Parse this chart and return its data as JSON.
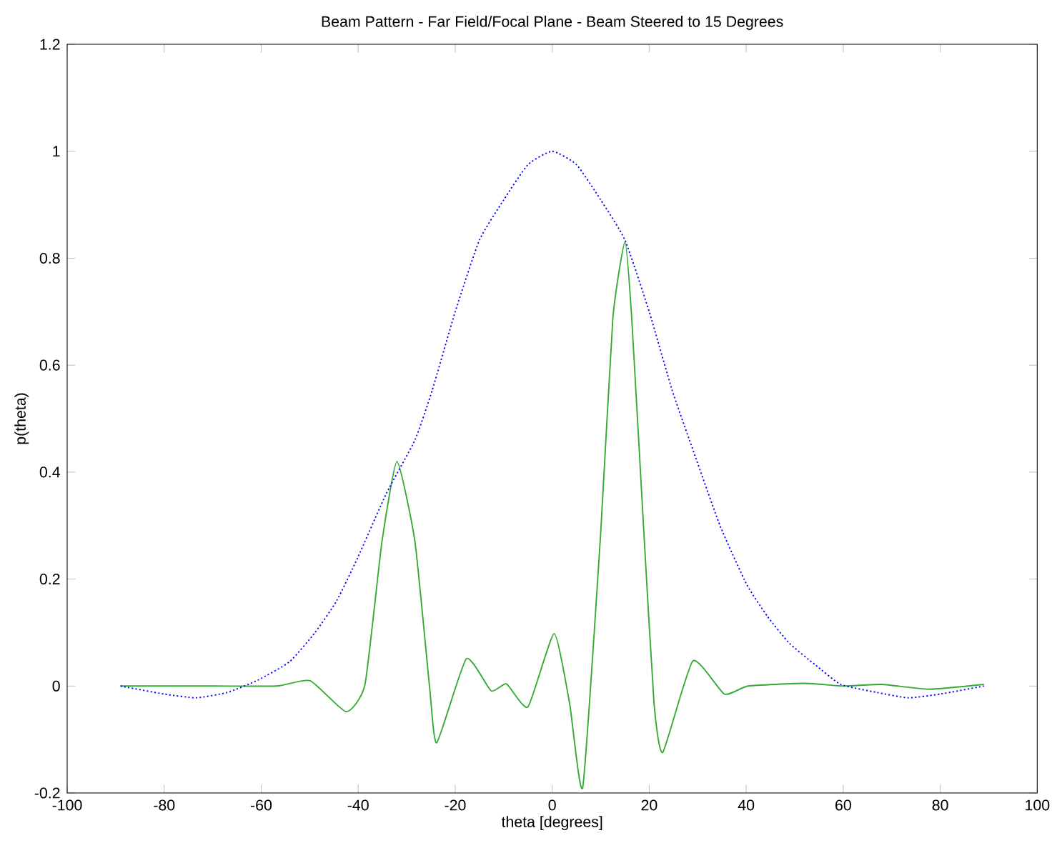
{
  "chart_data": {
    "type": "line",
    "title": "Beam Pattern - Far Field/Focal Plane - Beam Steered to 15 Degrees",
    "xlabel": "theta [degrees]",
    "ylabel": "p(theta)",
    "xlim": [
      -100,
      100
    ],
    "ylim": [
      -0.2,
      1.2
    ],
    "xticks": [
      -100,
      -80,
      -60,
      -40,
      -20,
      0,
      20,
      40,
      60,
      80,
      100
    ],
    "yticks": [
      -0.2,
      0,
      0.2,
      0.4,
      0.6,
      0.8,
      1,
      1.2
    ],
    "grid": false,
    "marker": "none",
    "series": [
      {
        "color": "#33aa33",
        "line_style": "solid",
        "x": [
          -89,
          -70,
          -56.8,
          -49.9,
          -42.5,
          -38.6,
          -35.1,
          -32,
          -28.3,
          -25.3,
          -23.8,
          -17.7,
          -12.6,
          -9.4,
          -5,
          0.4,
          3.6,
          6.3,
          10,
          12.5,
          15,
          16.4,
          18.9,
          21,
          22.8,
          29,
          35.5,
          40.4,
          52.1,
          60,
          68,
          77.8,
          89
        ],
        "values": [
          0,
          0,
          0,
          0.01,
          -0.048,
          0.003,
          0.27,
          0.42,
          0.27,
          0,
          -0.106,
          0.051,
          -0.009,
          0.004,
          -0.039,
          0.098,
          -0.033,
          -0.189,
          0.287,
          0.687,
          0.83,
          0.687,
          0.287,
          -0.033,
          -0.124,
          0.047,
          -0.015,
          0,
          0.005,
          0,
          0.003,
          -0.006,
          0.003
        ]
      },
      {
        "color": "#0000ff",
        "line_style": "dotted",
        "x": [
          -89,
          -80,
          -73.4,
          -67,
          -60.7,
          -54.2,
          -48.9,
          -44.4,
          -40.1,
          -34.2,
          -28.3,
          -24.7,
          -20,
          -15,
          -10,
          -5,
          0,
          5,
          10,
          15,
          20,
          24.7,
          28.3,
          34.6,
          40.1,
          44.4,
          48.9,
          54.2,
          59.5,
          67,
          73.4,
          80,
          89
        ],
        "values": [
          0,
          -0.015,
          -0.022,
          -0.012,
          0.011,
          0.045,
          0.1,
          0.16,
          0.24,
          0.36,
          0.46,
          0.554,
          0.7,
          0.834,
          0.909,
          0.975,
          1,
          0.975,
          0.909,
          0.834,
          0.7,
          0.554,
          0.46,
          0.3,
          0.19,
          0.13,
          0.08,
          0.04,
          0.003,
          -0.012,
          -0.022,
          -0.015,
          0
        ]
      }
    ]
  }
}
